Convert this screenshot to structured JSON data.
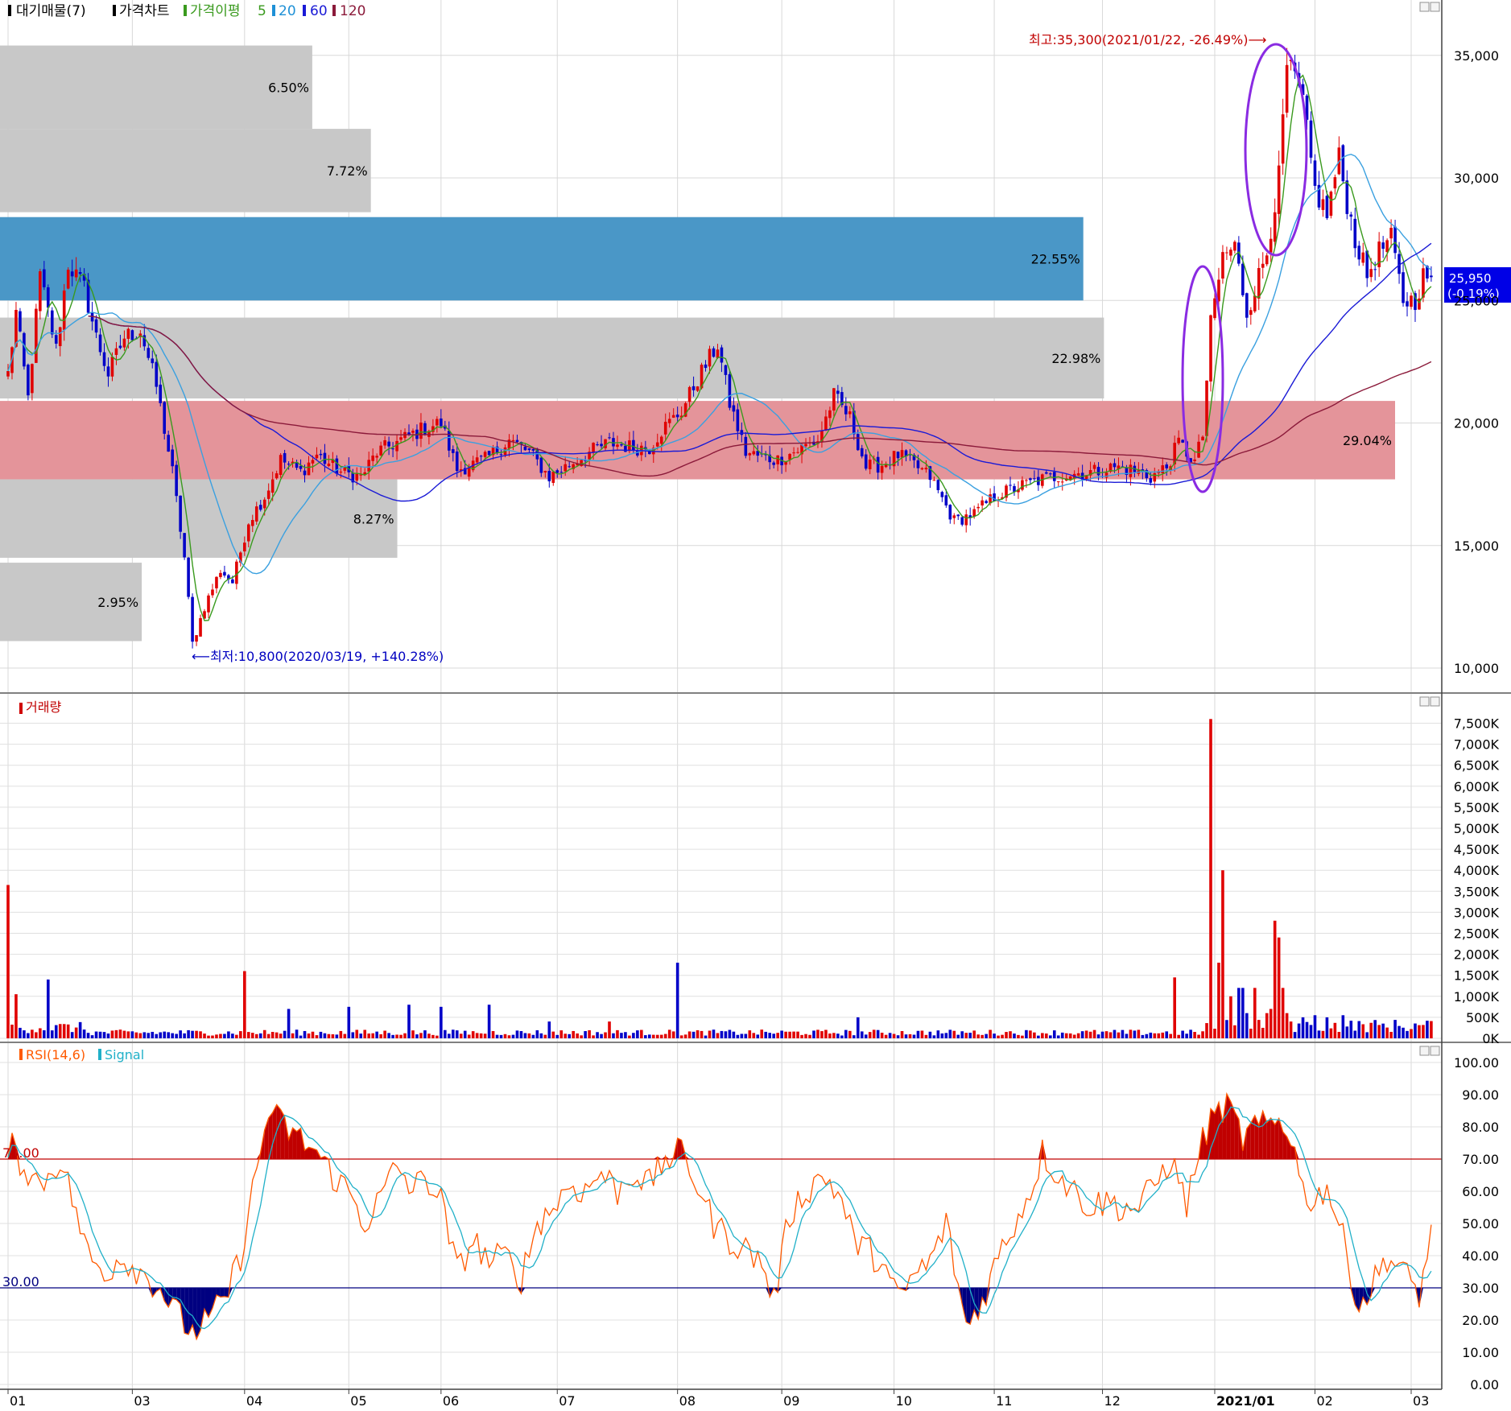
{
  "legend": {
    "marker_color": "#000000",
    "items": [
      {
        "label": "대기매물(7)",
        "color": "#000000"
      },
      {
        "label": "가격차트",
        "color": "#000000"
      },
      {
        "label": "가격이평",
        "color": "#3a9a1e"
      },
      {
        "label": "5",
        "color": "#3a9a1e"
      },
      {
        "label": "20",
        "color": "#1e90d6"
      },
      {
        "label": "60",
        "color": "#1a1ad6"
      },
      {
        "label": "120",
        "color": "#8b1a3a"
      }
    ]
  },
  "price_axis": {
    "ticks": [
      "35,000",
      "30,000",
      "25,000",
      "20,000",
      "15,000",
      "10,000"
    ],
    "values": [
      35000,
      30000,
      25000,
      20000,
      15000,
      10000
    ],
    "range": [
      9500,
      37000
    ]
  },
  "current_price": {
    "value": 25950,
    "label": "25,950",
    "change": "(-0.19%)",
    "color": "#0000e6"
  },
  "annotations": {
    "high": "최고:35,300(2021/01/22, -26.49%)⟶",
    "low": "⟵최저:10,800(2020/03/19, +140.28%)"
  },
  "overhang": [
    {
      "label": "6.50%",
      "percent": 6.5,
      "low": 32000,
      "high": 35400,
      "color": "#c8c8c8"
    },
    {
      "label": "7.72%",
      "percent": 7.72,
      "low": 28600,
      "high": 32000,
      "color": "#c8c8c8"
    },
    {
      "label": "22.55%",
      "percent": 22.55,
      "low": 25000,
      "high": 28400,
      "color": "#4a97c7"
    },
    {
      "label": "22.98%",
      "percent": 22.98,
      "low": 21000,
      "high": 24300,
      "color": "#c8c8c8"
    },
    {
      "label": "29.04%",
      "percent": 29.04,
      "low": 17700,
      "high": 20900,
      "color": "#e4949a"
    },
    {
      "label": "8.27%",
      "percent": 8.27,
      "low": 14500,
      "high": 17700,
      "color": "#c8c8c8"
    },
    {
      "label": "2.95%",
      "percent": 2.95,
      "low": 11100,
      "high": 14300,
      "color": "#c8c8c8"
    }
  ],
  "volume": {
    "title": "거래량",
    "ticks": [
      "7,500K",
      "7,000K",
      "6,500K",
      "6,000K",
      "5,500K",
      "5,000K",
      "4,500K",
      "4,000K",
      "3,500K",
      "3,000K",
      "2,500K",
      "2,000K",
      "1,500K",
      "1,000K",
      "500K",
      "0K"
    ],
    "max_k": 7800
  },
  "rsi": {
    "title": "RSI(14,6)",
    "signal_label": "Signal",
    "ticks": [
      "100.00",
      "90.00",
      "80.00",
      "70.00",
      "60.00",
      "50.00",
      "40.00",
      "30.00",
      "20.00",
      "10.00",
      "0.00"
    ],
    "upper": 70,
    "lower": 30,
    "upper_label": "70.00",
    "lower_label": "30.00",
    "upper_color": "#c00000",
    "lower_color": "#000080"
  },
  "x_axis": {
    "labels": [
      {
        "text": "01",
        "i": 0,
        "bold": false
      },
      {
        "text": "03",
        "i": 31,
        "bold": false
      },
      {
        "text": "04",
        "i": 59,
        "bold": false
      },
      {
        "text": "05",
        "i": 85,
        "bold": false
      },
      {
        "text": "06",
        "i": 108,
        "bold": false
      },
      {
        "text": "07",
        "i": 137,
        "bold": false
      },
      {
        "text": "08",
        "i": 167,
        "bold": false
      },
      {
        "text": "09",
        "i": 193,
        "bold": false
      },
      {
        "text": "10",
        "i": 221,
        "bold": false
      },
      {
        "text": "11",
        "i": 246,
        "bold": false
      },
      {
        "text": "12",
        "i": 273,
        "bold": false
      },
      {
        "text": "2021/01",
        "i": 301,
        "bold": true
      },
      {
        "text": "02",
        "i": 326,
        "bold": false
      },
      {
        "text": "03",
        "i": 350,
        "bold": false
      }
    ]
  },
  "colors": {
    "up": "#e00000",
    "down": "#0000c8",
    "ma5": "#3a9a1e",
    "ma20": "#3aa0e0",
    "ma60": "#1a1ad6",
    "ma120": "#8b1a3a",
    "rsi": "#ff5a00",
    "signal": "#20b0c8",
    "highlight": "#8a2be2"
  },
  "chart_data": [
    {
      "type": "candlestick",
      "title": "가격차트",
      "x_range": [
        "2020/01",
        "2021/03"
      ],
      "y_range": [
        9500,
        37000
      ],
      "n_sessions": 356,
      "anchors": [
        [
          0,
          22000
        ],
        [
          2,
          24500
        ],
        [
          5,
          21000
        ],
        [
          8,
          26000
        ],
        [
          12,
          23000
        ],
        [
          15,
          26500
        ],
        [
          19,
          25500
        ],
        [
          22,
          23500
        ],
        [
          25,
          22000
        ],
        [
          29,
          23500
        ],
        [
          33,
          23800
        ],
        [
          37,
          21500
        ],
        [
          41,
          18000
        ],
        [
          44,
          14500
        ],
        [
          46,
          11000
        ],
        [
          49,
          12500
        ],
        [
          53,
          14000
        ],
        [
          56,
          13500
        ],
        [
          60,
          16000
        ],
        [
          64,
          17000
        ],
        [
          68,
          18500
        ],
        [
          73,
          18000
        ],
        [
          77,
          18700
        ],
        [
          83,
          18000
        ],
        [
          88,
          17800
        ],
        [
          92,
          18800
        ],
        [
          98,
          19300
        ],
        [
          104,
          19800
        ],
        [
          108,
          20000
        ],
        [
          112,
          18100
        ],
        [
          119,
          18500
        ],
        [
          125,
          19300
        ],
        [
          130,
          18800
        ],
        [
          135,
          17800
        ],
        [
          140,
          18300
        ],
        [
          145,
          18800
        ],
        [
          150,
          19200
        ],
        [
          156,
          19000
        ],
        [
          160,
          19000
        ],
        [
          163,
          19700
        ],
        [
          168,
          20500
        ],
        [
          172,
          21800
        ],
        [
          177,
          23200
        ],
        [
          180,
          20800
        ],
        [
          184,
          18800
        ],
        [
          188,
          18600
        ],
        [
          192,
          18500
        ],
        [
          197,
          18900
        ],
        [
          202,
          19300
        ],
        [
          206,
          21100
        ],
        [
          210,
          20200
        ],
        [
          214,
          18200
        ],
        [
          218,
          18300
        ],
        [
          222,
          18700
        ],
        [
          226,
          18300
        ],
        [
          230,
          17800
        ],
        [
          236,
          16000
        ],
        [
          241,
          16300
        ],
        [
          246,
          17000
        ],
        [
          252,
          17400
        ],
        [
          258,
          17700
        ],
        [
          264,
          17900
        ],
        [
          270,
          18000
        ],
        [
          276,
          18200
        ],
        [
          280,
          18100
        ],
        [
          285,
          17800
        ],
        [
          289,
          18200
        ],
        [
          292,
          19200
        ],
        [
          296,
          18400
        ],
        [
          298,
          19500
        ],
        [
          300,
          24000
        ],
        [
          303,
          26800
        ],
        [
          306,
          27200
        ],
        [
          309,
          24500
        ],
        [
          312,
          26000
        ],
        [
          314,
          27000
        ],
        [
          317,
          30000
        ],
        [
          319,
          34500
        ],
        [
          321,
          34000
        ],
        [
          323,
          33000
        ],
        [
          326,
          29500
        ],
        [
          329,
          28500
        ],
        [
          332,
          30800
        ],
        [
          334,
          29000
        ],
        [
          336,
          27500
        ],
        [
          339,
          26000
        ],
        [
          342,
          27000
        ],
        [
          345,
          27500
        ],
        [
          348,
          25000
        ],
        [
          351,
          25000
        ],
        [
          353,
          26000
        ],
        [
          355,
          25950
        ]
      ],
      "high": {
        "value": 35300,
        "date": "2021/01/22",
        "change": "-26.49%"
      },
      "low": {
        "value": 10800,
        "date": "2020/03/19",
        "change": "+140.28%"
      },
      "moving_averages": [
        5,
        20,
        60,
        120
      ]
    },
    {
      "type": "bar",
      "title": "거래량",
      "unit": "K",
      "spikes": [
        [
          0,
          3650
        ],
        [
          2,
          1050
        ],
        [
          10,
          1400
        ],
        [
          59,
          1600
        ],
        [
          70,
          700
        ],
        [
          85,
          750
        ],
        [
          100,
          800
        ],
        [
          108,
          750
        ],
        [
          120,
          800
        ],
        [
          135,
          400
        ],
        [
          150,
          400
        ],
        [
          167,
          1800
        ],
        [
          212,
          500
        ],
        [
          291,
          1450
        ],
        [
          300,
          7600
        ],
        [
          302,
          1800
        ],
        [
          303,
          4000
        ],
        [
          305,
          1000
        ],
        [
          307,
          1200
        ],
        [
          308,
          1200
        ],
        [
          309,
          600
        ],
        [
          311,
          1200
        ],
        [
          314,
          600
        ],
        [
          315,
          700
        ],
        [
          316,
          2800
        ],
        [
          317,
          2400
        ],
        [
          318,
          1200
        ],
        [
          319,
          600
        ],
        [
          320,
          400
        ],
        [
          323,
          500
        ],
        [
          326,
          550
        ],
        [
          329,
          500
        ],
        [
          333,
          550
        ]
      ]
    },
    {
      "type": "line",
      "title": "RSI(14,6)",
      "series_names": [
        "RSI(14,6)",
        "Signal"
      ],
      "y_range": [
        0,
        100
      ],
      "anchors": [
        [
          0,
          75
        ],
        [
          4,
          68
        ],
        [
          8,
          62
        ],
        [
          13,
          70
        ],
        [
          16,
          58
        ],
        [
          20,
          40
        ],
        [
          24,
          34
        ],
        [
          28,
          40
        ],
        [
          31,
          37
        ],
        [
          34,
          34
        ],
        [
          38,
          30
        ],
        [
          42,
          22
        ],
        [
          46,
          16
        ],
        [
          50,
          20
        ],
        [
          54,
          26
        ],
        [
          58,
          40
        ],
        [
          61,
          60
        ],
        [
          65,
          85
        ],
        [
          69,
          80
        ],
        [
          73,
          76
        ],
        [
          77,
          72
        ],
        [
          81,
          65
        ],
        [
          85,
          60
        ],
        [
          89,
          50
        ],
        [
          93,
          58
        ],
        [
          97,
          68
        ],
        [
          101,
          60
        ],
        [
          104,
          65
        ],
        [
          108,
          57
        ],
        [
          112,
          35
        ],
        [
          116,
          45
        ],
        [
          120,
          38
        ],
        [
          124,
          40
        ],
        [
          128,
          33
        ],
        [
          132,
          50
        ],
        [
          136,
          55
        ],
        [
          140,
          62
        ],
        [
          144,
          60
        ],
        [
          148,
          66
        ],
        [
          152,
          60
        ],
        [
          156,
          66
        ],
        [
          160,
          62
        ],
        [
          164,
          70
        ],
        [
          168,
          72
        ],
        [
          172,
          62
        ],
        [
          176,
          50
        ],
        [
          180,
          45
        ],
        [
          184,
          42
        ],
        [
          188,
          38
        ],
        [
          191,
          26
        ],
        [
          195,
          53
        ],
        [
          199,
          60
        ],
        [
          203,
          65
        ],
        [
          207,
          60
        ],
        [
          211,
          45
        ],
        [
          214,
          42
        ],
        [
          218,
          38
        ],
        [
          222,
          26
        ],
        [
          226,
          34
        ],
        [
          230,
          38
        ],
        [
          234,
          50
        ],
        [
          239,
          18
        ],
        [
          243,
          26
        ],
        [
          247,
          40
        ],
        [
          251,
          50
        ],
        [
          255,
          60
        ],
        [
          258,
          72
        ],
        [
          262,
          65
        ],
        [
          266,
          60
        ],
        [
          270,
          55
        ],
        [
          274,
          57
        ],
        [
          278,
          55
        ],
        [
          282,
          55
        ],
        [
          286,
          62
        ],
        [
          290,
          70
        ],
        [
          294,
          56
        ],
        [
          297,
          72
        ],
        [
          300,
          82
        ],
        [
          303,
          86
        ],
        [
          305,
          85
        ],
        [
          308,
          76
        ],
        [
          311,
          80
        ],
        [
          314,
          80
        ],
        [
          317,
          82
        ],
        [
          320,
          78
        ],
        [
          323,
          60
        ],
        [
          326,
          57
        ],
        [
          329,
          62
        ],
        [
          333,
          45
        ],
        [
          337,
          24
        ],
        [
          340,
          30
        ],
        [
          344,
          40
        ],
        [
          348,
          35
        ],
        [
          352,
          28
        ],
        [
          355,
          46
        ]
      ]
    }
  ]
}
